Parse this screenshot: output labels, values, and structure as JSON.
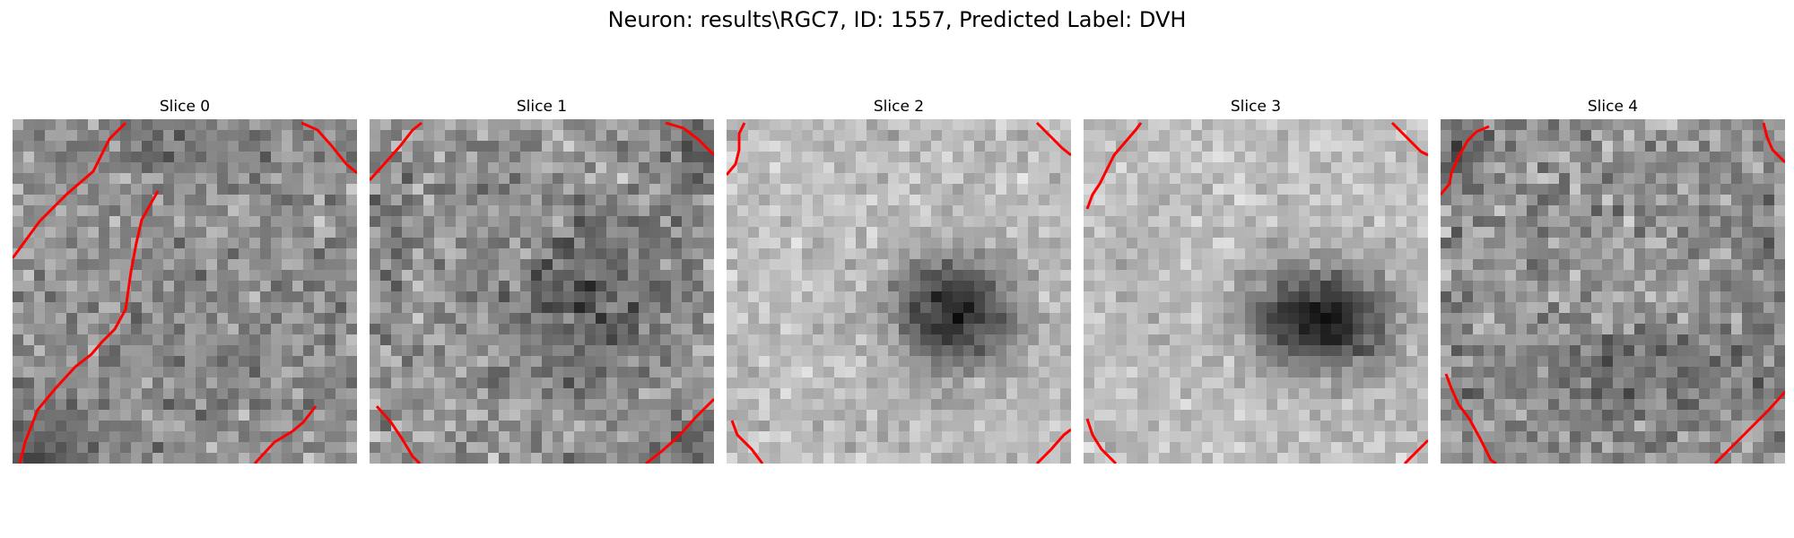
{
  "figure": {
    "title": "Neuron: results\\RGC7, ID: 1557, Predicted Label: DVH"
  },
  "colors": {
    "background": "#ffffff",
    "contour": "#ff0000"
  },
  "image_grid": {
    "cells_per_side": 32,
    "colormap": "gray"
  },
  "slices": [
    {
      "label": "Slice 0",
      "dark_region": "faint dark patches scattered, stronger at lower-left corner"
    },
    {
      "label": "Slice 1",
      "dark_region": "diffuse dark blob at center-right"
    },
    {
      "label": "Slice 2",
      "dark_region": "distinct dark blob centered right of middle"
    },
    {
      "label": "Slice 3",
      "dark_region": "strong dark blob centered right of middle"
    },
    {
      "label": "Slice 4",
      "dark_region": "faint dark band in lower half"
    }
  ]
}
